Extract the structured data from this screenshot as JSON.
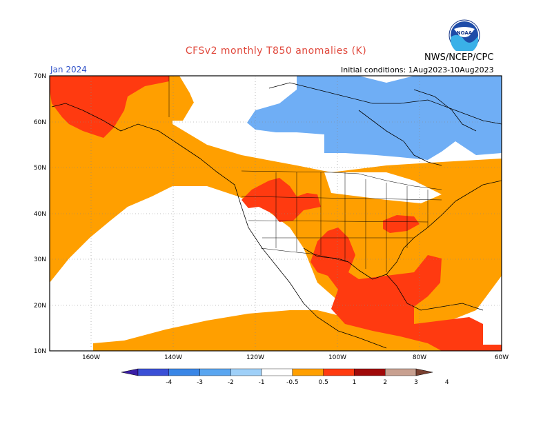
{
  "header": {
    "title": "CFSv2 monthly T850 anomalies (K)",
    "agency": "NWS/NCEP/CPC",
    "valid_month": "Jan 2024",
    "initial_conditions": "Initial conditions: 1Aug2023-10Aug2023"
  },
  "map": {
    "lat_labels": [
      "70N",
      "60N",
      "50N",
      "40N",
      "30N",
      "20N",
      "10N"
    ],
    "lon_labels": [
      "160W",
      "140W",
      "120W",
      "100W",
      "80W",
      "60W"
    ],
    "extent": {
      "lon_min": -170,
      "lon_max": -60,
      "lat_min": 10,
      "lat_max": 70
    }
  },
  "colorbar": {
    "ticks": [
      "-4",
      "-3",
      "-2",
      "-1",
      "-0.5",
      "0.5",
      "1",
      "2",
      "3",
      "4"
    ],
    "colors": [
      "#3a1ea6",
      "#3a4fd6",
      "#3a86e6",
      "#5aa6f0",
      "#9fd0f8",
      "#ffffff",
      "#ff9f00",
      "#ff3a10",
      "#a00a0a",
      "#c8a090",
      "#7a4030"
    ]
  },
  "colors": {
    "warm_05_1": "#ff9f00",
    "warm_1_2": "#ff3a10",
    "cool_1_05": "#6faef5",
    "neutral": "#ffffff"
  },
  "logo_text": "NOAA"
}
